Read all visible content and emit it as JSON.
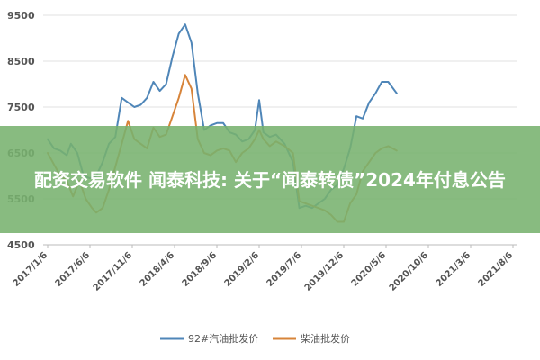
{
  "headline": "配资交易软件 闻泰科技: 关于“闻泰转债”2024年付息公告",
  "chart_data": {
    "type": "line",
    "title": "",
    "xlabel": "",
    "ylabel": "",
    "ylim": [
      4500,
      9500
    ],
    "yticks": [
      "9500",
      "8500",
      "7500",
      "6500",
      "5500",
      "4500"
    ],
    "x_categories": [
      "2017/1/6",
      "2017/6/6",
      "2017/11/6",
      "2018/4/6",
      "2018/9/6",
      "2019/2/6",
      "2019/7/6",
      "2019/12/6",
      "2020/5/6",
      "2020/10/6",
      "2021/3/6",
      "2021/8/6"
    ],
    "grid": true,
    "legend_position": "bottom",
    "series": [
      {
        "name": "92#汽油批发价",
        "color": "#4f86b8",
        "points": [
          [
            0,
            6800
          ],
          [
            0.15,
            6600
          ],
          [
            0.3,
            6550
          ],
          [
            0.45,
            6450
          ],
          [
            0.55,
            6700
          ],
          [
            0.7,
            6500
          ],
          [
            0.85,
            6000
          ],
          [
            1.0,
            5950
          ],
          [
            1.15,
            6000
          ],
          [
            1.3,
            6300
          ],
          [
            1.45,
            6700
          ],
          [
            1.6,
            6850
          ],
          [
            1.75,
            7700
          ],
          [
            1.9,
            7600
          ],
          [
            2.05,
            7500
          ],
          [
            2.2,
            7550
          ],
          [
            2.35,
            7700
          ],
          [
            2.5,
            8050
          ],
          [
            2.65,
            7850
          ],
          [
            2.8,
            8000
          ],
          [
            2.95,
            8600
          ],
          [
            3.1,
            9100
          ],
          [
            3.25,
            9300
          ],
          [
            3.4,
            8900
          ],
          [
            3.55,
            7800
          ],
          [
            3.7,
            7000
          ],
          [
            3.85,
            7100
          ],
          [
            4.0,
            7150
          ],
          [
            4.15,
            7150
          ],
          [
            4.3,
            6950
          ],
          [
            4.45,
            6900
          ],
          [
            4.6,
            6750
          ],
          [
            4.75,
            6800
          ],
          [
            4.9,
            7000
          ],
          [
            5.0,
            7650
          ],
          [
            5.1,
            6950
          ],
          [
            5.25,
            6850
          ],
          [
            5.4,
            6900
          ],
          [
            5.6,
            6700
          ],
          [
            5.8,
            6300
          ],
          [
            5.95,
            5300
          ],
          [
            6.1,
            5350
          ],
          [
            6.25,
            5300
          ],
          [
            6.4,
            5400
          ],
          [
            6.55,
            5500
          ],
          [
            6.7,
            5700
          ],
          [
            6.85,
            5800
          ],
          [
            7.0,
            6150
          ],
          [
            7.15,
            6600
          ],
          [
            7.3,
            7300
          ],
          [
            7.45,
            7250
          ],
          [
            7.6,
            7600
          ],
          [
            7.75,
            7800
          ],
          [
            7.9,
            8050
          ],
          [
            8.05,
            8050
          ],
          [
            8.25,
            7800
          ]
        ]
      },
      {
        "name": "柴油批发价",
        "color": "#d7843a",
        "points": [
          [
            0,
            6500
          ],
          [
            0.15,
            6250
          ],
          [
            0.3,
            6000
          ],
          [
            0.45,
            5900
          ],
          [
            0.6,
            5550
          ],
          [
            0.75,
            5900
          ],
          [
            0.9,
            5500
          ],
          [
            1.05,
            5300
          ],
          [
            1.15,
            5200
          ],
          [
            1.3,
            5300
          ],
          [
            1.45,
            5700
          ],
          [
            1.6,
            6200
          ],
          [
            1.75,
            6700
          ],
          [
            1.9,
            7200
          ],
          [
            2.05,
            6800
          ],
          [
            2.2,
            6700
          ],
          [
            2.35,
            6600
          ],
          [
            2.5,
            7050
          ],
          [
            2.65,
            6850
          ],
          [
            2.8,
            6900
          ],
          [
            2.95,
            7300
          ],
          [
            3.1,
            7700
          ],
          [
            3.25,
            8200
          ],
          [
            3.4,
            7900
          ],
          [
            3.55,
            6800
          ],
          [
            3.7,
            6500
          ],
          [
            3.85,
            6450
          ],
          [
            4.0,
            6550
          ],
          [
            4.15,
            6600
          ],
          [
            4.3,
            6550
          ],
          [
            4.45,
            6300
          ],
          [
            4.6,
            6500
          ],
          [
            4.75,
            6600
          ],
          [
            4.9,
            6800
          ],
          [
            5.0,
            7000
          ],
          [
            5.1,
            6800
          ],
          [
            5.25,
            6650
          ],
          [
            5.4,
            6750
          ],
          [
            5.6,
            6650
          ],
          [
            5.8,
            6500
          ],
          [
            5.95,
            5450
          ],
          [
            6.1,
            5400
          ],
          [
            6.25,
            5350
          ],
          [
            6.4,
            5300
          ],
          [
            6.55,
            5250
          ],
          [
            6.7,
            5150
          ],
          [
            6.85,
            5000
          ],
          [
            7.0,
            5000
          ],
          [
            7.15,
            5400
          ],
          [
            7.3,
            5600
          ],
          [
            7.45,
            6100
          ],
          [
            7.6,
            6300
          ],
          [
            7.75,
            6500
          ],
          [
            7.9,
            6600
          ],
          [
            8.05,
            6650
          ],
          [
            8.25,
            6550
          ]
        ]
      }
    ]
  }
}
